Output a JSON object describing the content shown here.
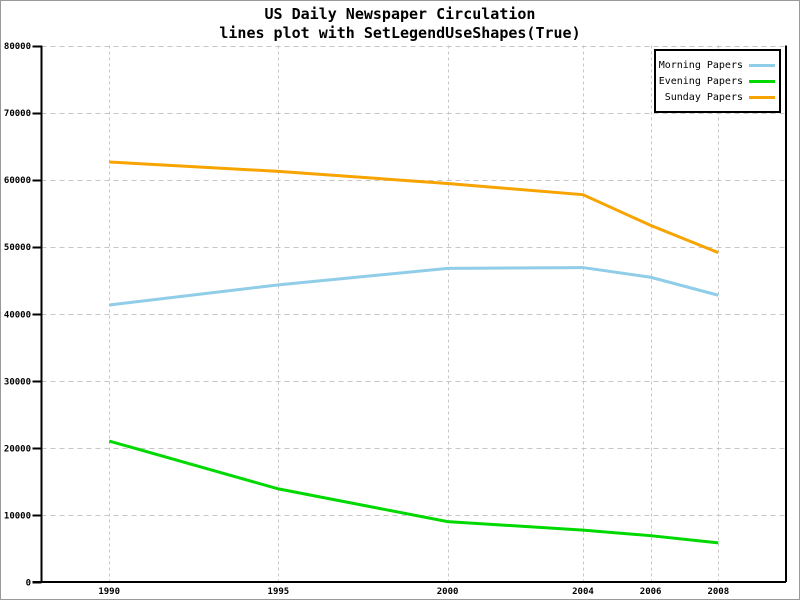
{
  "chart_data": {
    "type": "line",
    "title": "US Daily Newspaper Circulation",
    "subtitle": "lines plot with SetLegendUseShapes(True)",
    "x": [
      1990,
      1995,
      2000,
      2004,
      2006,
      2008
    ],
    "series": [
      {
        "name": "Morning Papers",
        "color": "#8FCDE8",
        "values": [
          41311,
          44310,
          46772,
          46887,
          45441,
          42757
        ]
      },
      {
        "name": "Evening Papers",
        "color": "#00D900",
        "values": [
          21017,
          13883,
          9000,
          7738,
          6906,
          5840
        ]
      },
      {
        "name": "Sunday Papers",
        "color": "#F7A400",
        "values": [
          62635,
          61229,
          59421,
          57754,
          53179,
          49115
        ]
      }
    ],
    "xlim": [
      1988,
      2010
    ],
    "ylim": [
      0,
      80000
    ],
    "x_ticks": [
      1990,
      1995,
      2000,
      2004,
      2006,
      2008
    ],
    "y_ticks": [
      0,
      10000,
      20000,
      30000,
      40000,
      50000,
      60000,
      70000,
      80000
    ],
    "xlabel": "",
    "ylabel": "",
    "grid": true,
    "legend_position": "top-right",
    "legend_entries": [
      "Morning Papers",
      "Evening Papers",
      "Sunday Papers"
    ],
    "colors": {
      "grid": "#C6C6C6",
      "axis": "#000000",
      "background": "#FFFFFF",
      "figure_border": "#999999",
      "text": "#000000"
    }
  }
}
